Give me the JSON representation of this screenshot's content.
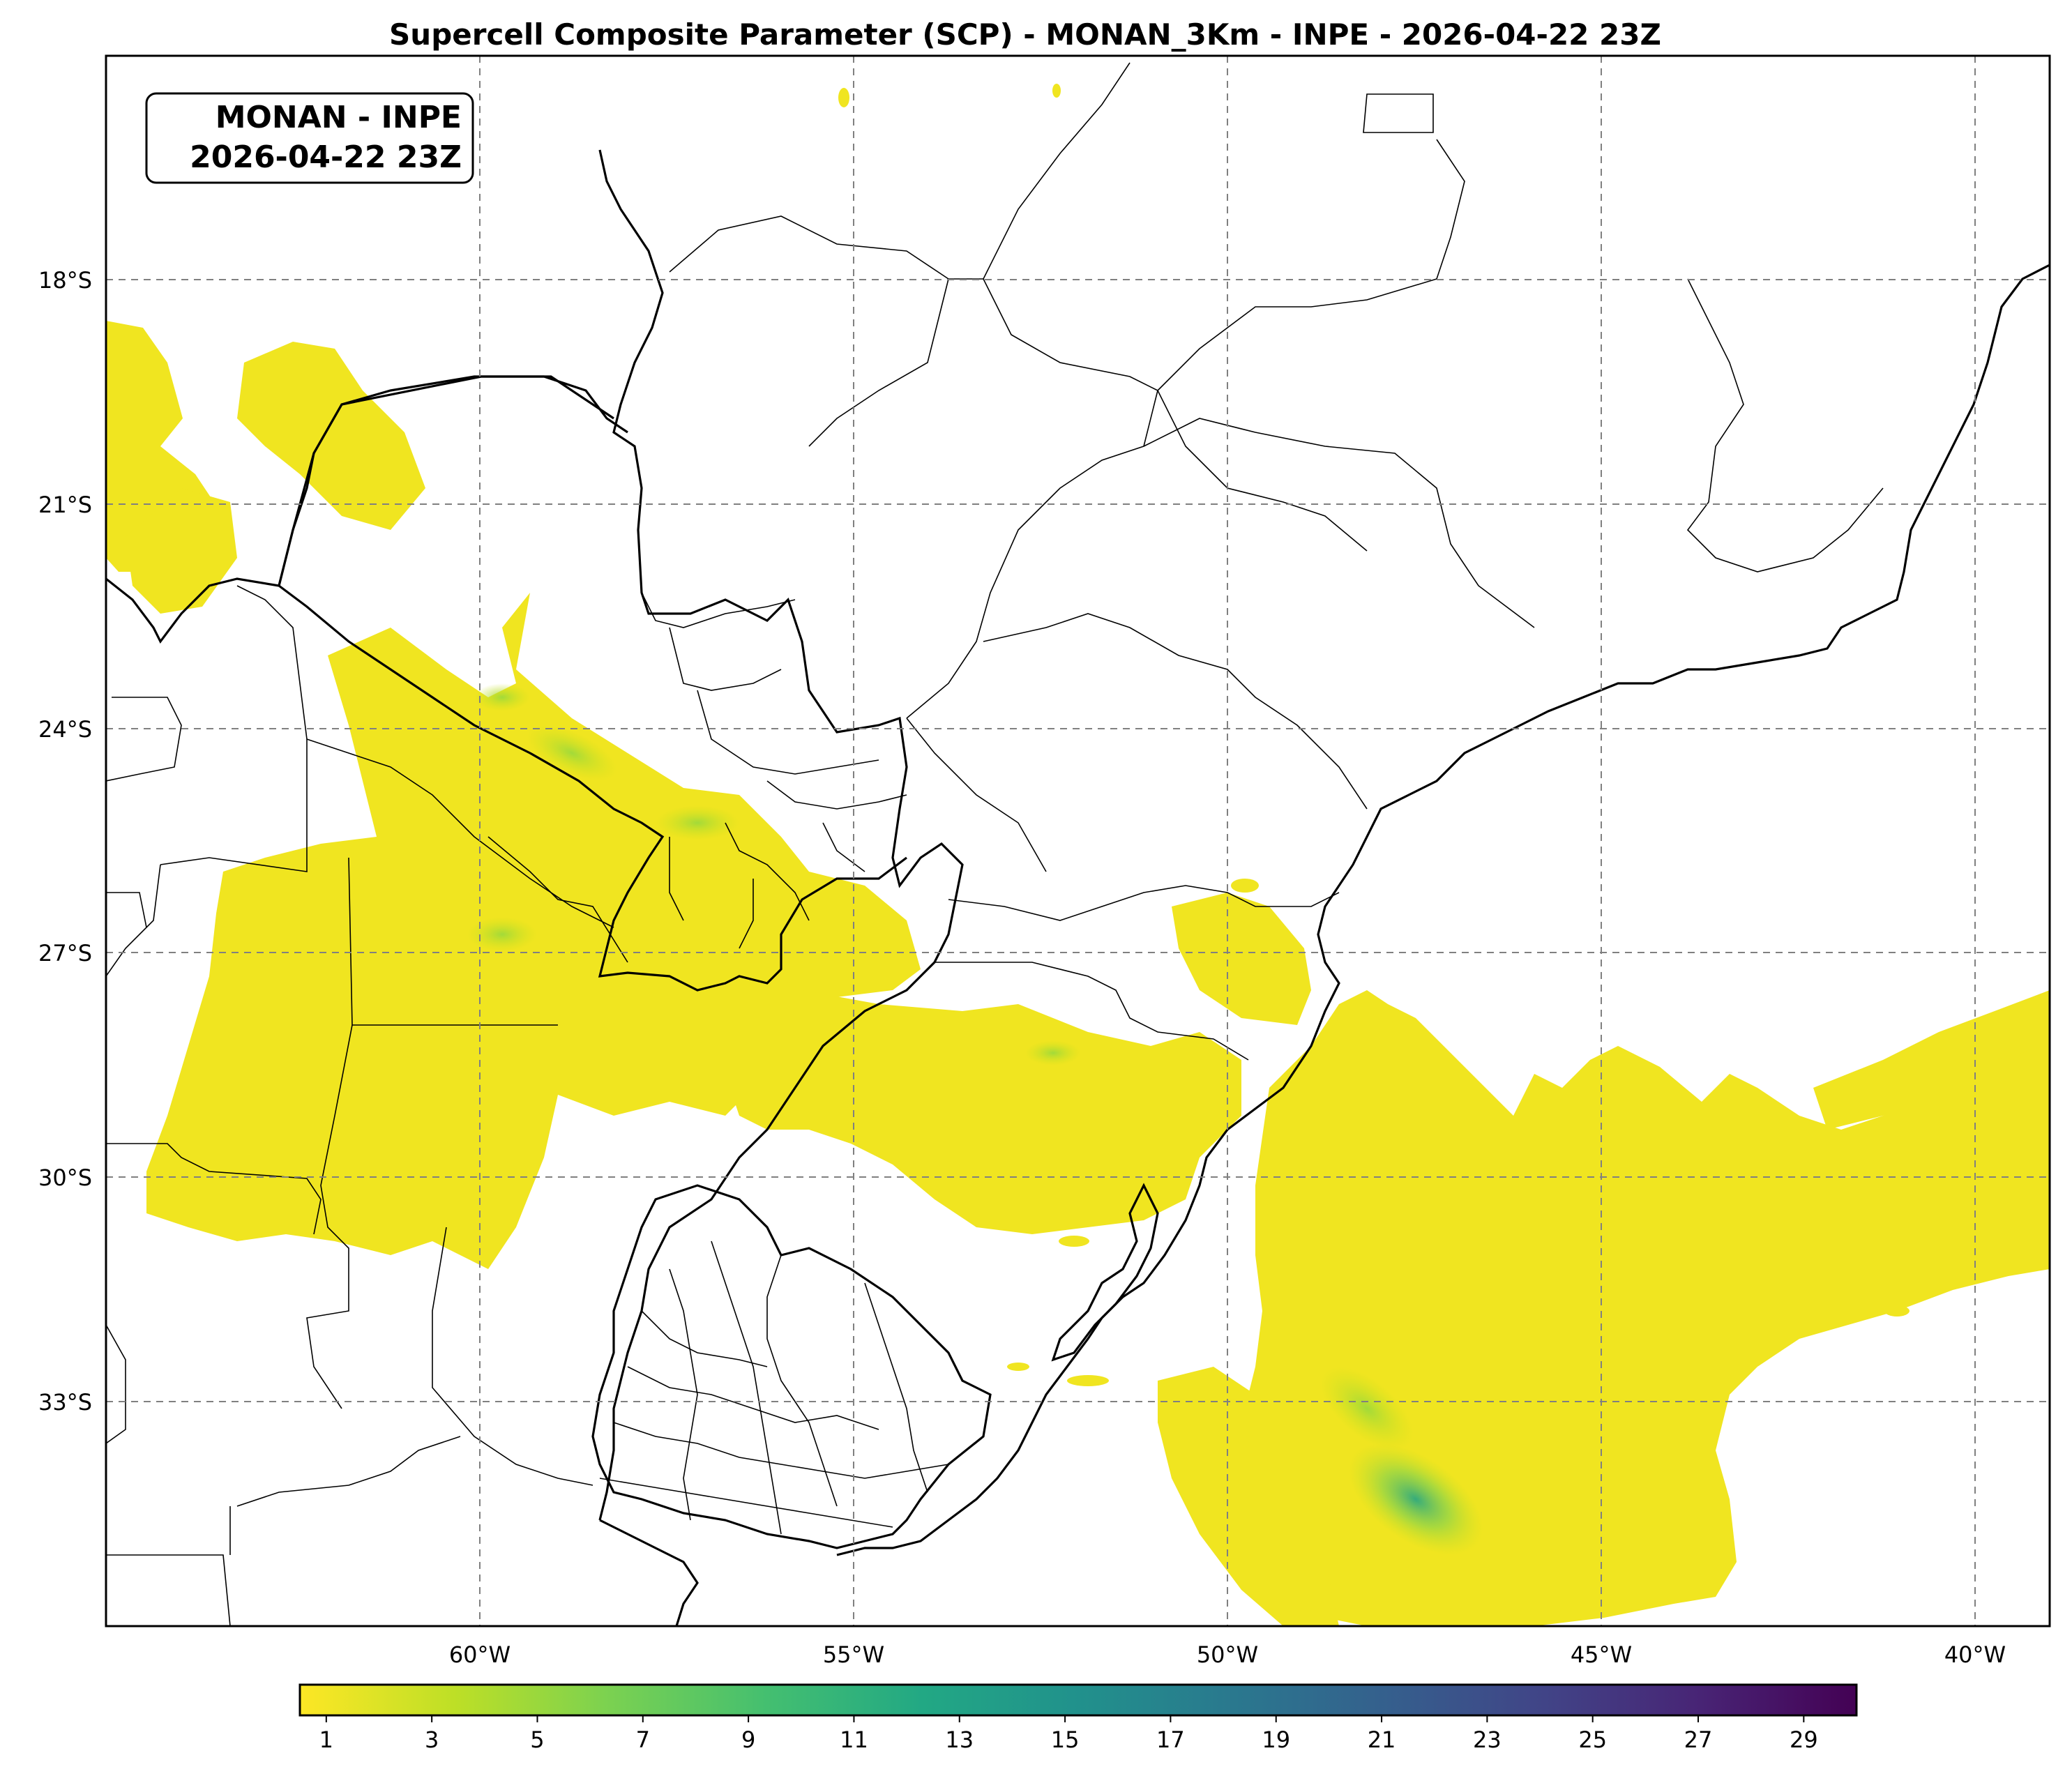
{
  "title": "Supercell Composite Parameter (SCP) - MONAN_3Km - INPE - 2026-04-22 23Z",
  "info_box": {
    "line1": "MONAN - INPE",
    "line2": "2026-04-22 23Z"
  },
  "map": {
    "lon_range": [
      -65,
      -39
    ],
    "lat_range": [
      -36,
      -15
    ],
    "grid": true,
    "lon_ticks": [
      {
        "value": -60,
        "label": "60°W"
      },
      {
        "value": -55,
        "label": "55°W"
      },
      {
        "value": -50,
        "label": "50°W"
      },
      {
        "value": -45,
        "label": "45°W"
      },
      {
        "value": -40,
        "label": "40°W"
      }
    ],
    "lat_ticks": [
      {
        "value": -18,
        "label": "18°S"
      },
      {
        "value": -21,
        "label": "21°S"
      },
      {
        "value": -24,
        "label": "24°S"
      },
      {
        "value": -27,
        "label": "27°S"
      },
      {
        "value": -30,
        "label": "30°S"
      },
      {
        "value": -33,
        "label": "33°S"
      }
    ],
    "field_color": "#f0e520",
    "field_color_high": "#5ec962",
    "field_color_max": "#21918c",
    "border_color": "#000000"
  },
  "colorbar": {
    "colormap": "viridis_r",
    "range": [
      0.5,
      30
    ],
    "ticks": [
      {
        "value": 1,
        "label": "1"
      },
      {
        "value": 3,
        "label": "3"
      },
      {
        "value": 5,
        "label": "5"
      },
      {
        "value": 7,
        "label": "7"
      },
      {
        "value": 9,
        "label": "9"
      },
      {
        "value": 11,
        "label": "11"
      },
      {
        "value": 13,
        "label": "13"
      },
      {
        "value": 15,
        "label": "15"
      },
      {
        "value": 17,
        "label": "17"
      },
      {
        "value": 19,
        "label": "19"
      },
      {
        "value": 21,
        "label": "21"
      },
      {
        "value": 23,
        "label": "23"
      },
      {
        "value": 25,
        "label": "25"
      },
      {
        "value": 27,
        "label": "27"
      },
      {
        "value": 29,
        "label": "29"
      }
    ]
  }
}
